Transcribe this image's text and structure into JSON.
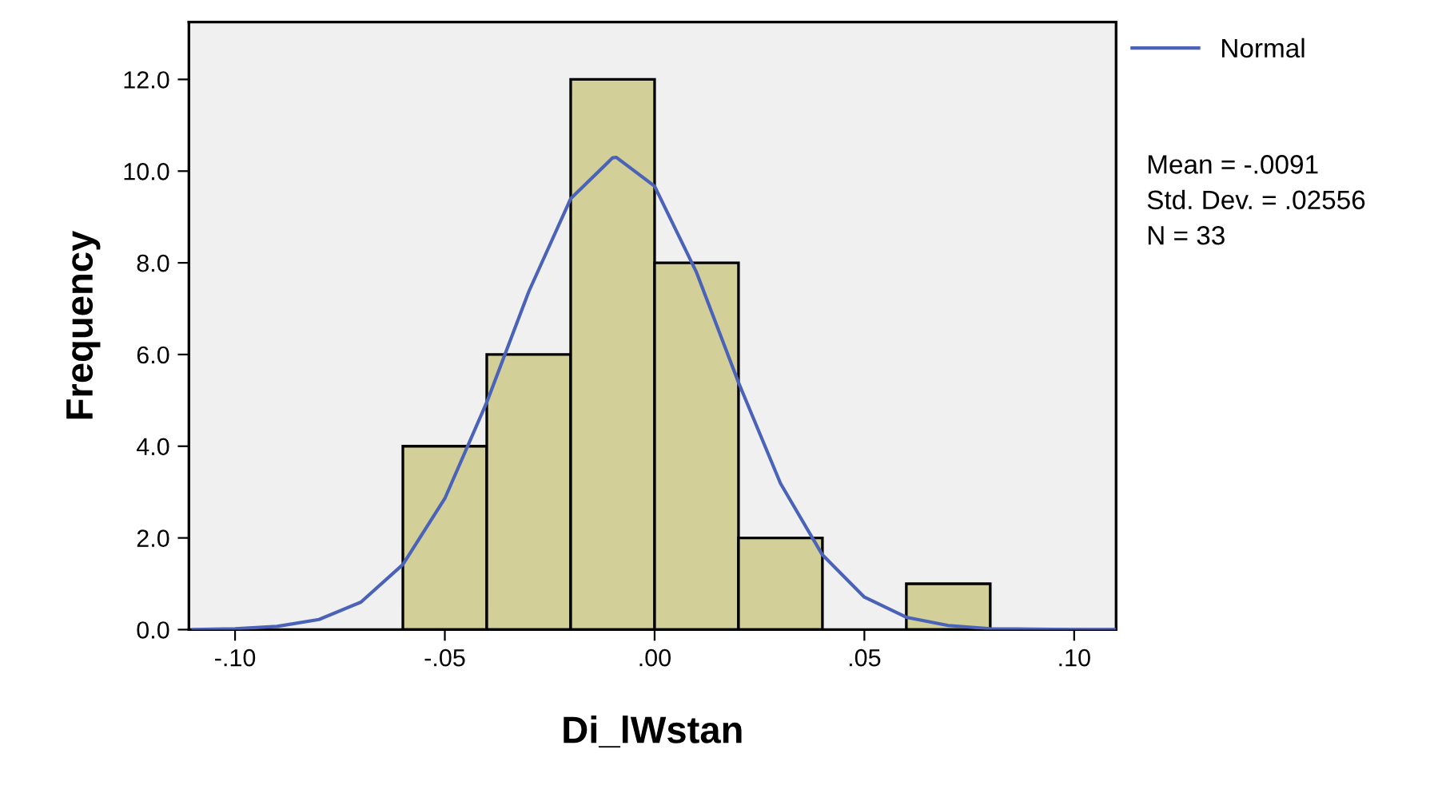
{
  "chart_data": {
    "type": "histogram",
    "xlabel": "Di_lWstan",
    "ylabel": "Frequency",
    "series": [
      {
        "color": "#d3cf99",
        "bins": [
          -0.06,
          -0.04,
          -0.02,
          0.0,
          0.02,
          0.04,
          0.06,
          0.08
        ],
        "values": [
          4,
          6,
          12,
          8,
          2,
          0,
          1
        ]
      },
      {
        "type": "line",
        "name": "Normal",
        "color": "#4a62b8",
        "x": [
          -0.11,
          -0.1,
          -0.09,
          -0.08,
          -0.07,
          -0.06,
          -0.05,
          -0.04,
          -0.03,
          -0.02,
          -0.01,
          -0.0091,
          0.0,
          0.01,
          0.02,
          0.03,
          0.04,
          0.05,
          0.06,
          0.07,
          0.08,
          0.09,
          0.1,
          0.11
        ],
        "values": [
          0.0,
          0.02,
          0.07,
          0.22,
          0.6,
          1.42,
          2.86,
          4.96,
          7.37,
          9.4,
          10.29,
          10.3,
          9.67,
          7.79,
          5.39,
          3.19,
          1.63,
          0.71,
          0.27,
          0.09,
          0.02,
          0.01,
          0.0,
          0.0
        ]
      }
    ],
    "xlim": [
      -0.111,
      0.11
    ],
    "ylim": [
      0,
      13.25
    ],
    "xticks": [
      {
        "value": -0.1,
        "label": "-.10"
      },
      {
        "value": -0.05,
        "label": "-.05"
      },
      {
        "value": 0,
        "label": ".00"
      },
      {
        "value": 0.05,
        "label": ".05"
      },
      {
        "value": 0.1,
        "label": ".10"
      }
    ],
    "yticks": [
      {
        "value": 0,
        "label": "0.0"
      },
      {
        "value": 2,
        "label": "2.0"
      },
      {
        "value": 4,
        "label": "4.0"
      },
      {
        "value": 6,
        "label": "6.0"
      },
      {
        "value": 8,
        "label": "8.0"
      },
      {
        "value": 10,
        "label": "10.0"
      },
      {
        "value": 12,
        "label": "12.0"
      }
    ],
    "annotations": [
      "Mean = -.0091",
      "Std. Dev. = .02556",
      "N = 33"
    ],
    "grid": false,
    "legend": "top right"
  }
}
